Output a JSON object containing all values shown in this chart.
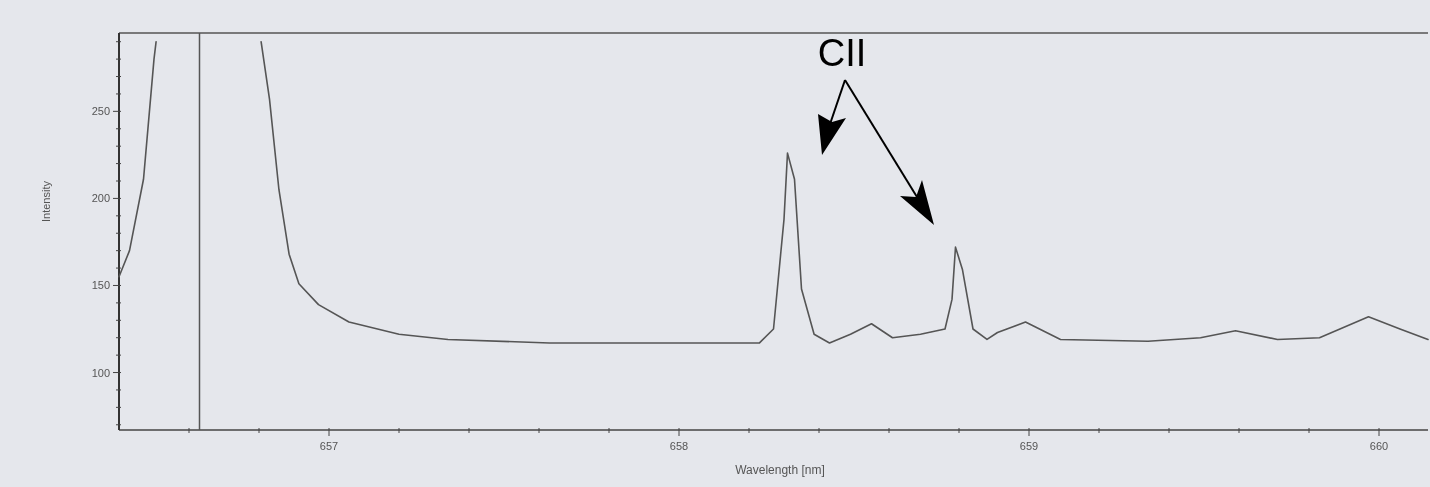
{
  "chart_data": {
    "type": "line",
    "xlabel": "Wavelength [nm]",
    "ylabel": "Intensity",
    "xlim": [
      656.4,
      660.14
    ],
    "ylim": [
      67,
      295
    ],
    "xticks": [
      {
        "value": 656.6,
        "label": null
      },
      {
        "value": 656.8,
        "label": null
      },
      657,
      {
        "value": 657.2,
        "label": null
      },
      {
        "value": 657.4,
        "label": null
      },
      {
        "value": 657.6,
        "label": null
      },
      {
        "value": 657.8,
        "label": null
      },
      658,
      {
        "value": 658.2,
        "label": null
      },
      {
        "value": 658.4,
        "label": null
      },
      {
        "value": 658.6,
        "label": null
      },
      {
        "value": 658.8,
        "label": null
      },
      659,
      {
        "value": 659.2,
        "label": null
      },
      {
        "value": 659.4,
        "label": null
      },
      {
        "value": 659.6,
        "label": null
      },
      {
        "value": 659.8,
        "label": null
      },
      660
    ],
    "yticks": [
      {
        "value": 70,
        "label": null
      },
      {
        "value": 80,
        "label": null
      },
      {
        "value": 90,
        "label": null
      },
      100,
      {
        "value": 110,
        "label": null
      },
      {
        "value": 120,
        "label": null
      },
      {
        "value": 130,
        "label": null
      },
      {
        "value": 140,
        "label": null
      },
      150,
      {
        "value": 160,
        "label": null
      },
      {
        "value": 170,
        "label": null
      },
      {
        "value": 180,
        "label": null
      },
      {
        "value": 190,
        "label": null
      },
      200,
      {
        "value": 210,
        "label": null
      },
      {
        "value": 220,
        "label": null
      },
      {
        "value": 230,
        "label": null
      },
      {
        "value": 240,
        "label": null
      },
      250,
      {
        "value": 260,
        "label": null
      },
      {
        "value": 270,
        "label": null
      },
      {
        "value": 280,
        "label": null
      },
      {
        "value": 290,
        "label": null
      }
    ],
    "grid": false,
    "marker": "none",
    "line_style": "solid",
    "ref_lines": [
      {
        "axis": "x",
        "value": 656.63,
        "color": "#555555"
      }
    ],
    "annotations": [
      "CII"
    ],
    "series": [
      {
        "color": "#555555",
        "x": [
          656.4,
          656.43,
          656.47,
          656.5,
          656.506,
          656.66,
          656.806,
          656.83,
          656.857,
          656.886,
          656.914,
          656.97,
          657.057,
          657.2,
          657.34,
          657.63,
          658.06,
          658.23,
          658.27,
          658.3,
          658.31,
          658.33,
          658.35,
          658.386,
          658.43,
          658.49,
          658.55,
          658.61,
          658.69,
          658.76,
          658.78,
          658.79,
          658.81,
          658.84,
          658.88,
          658.91,
          658.99,
          659.09,
          659.34,
          659.49,
          659.59,
          659.71,
          659.83,
          659.97,
          660.06,
          660.14
        ],
        "values": [
          155,
          170,
          211,
          280,
          290,
          null,
          290,
          257,
          205,
          168,
          151,
          139,
          129,
          122,
          119,
          117,
          117,
          117,
          125,
          188,
          226,
          211,
          148,
          122,
          117,
          122,
          128,
          120,
          122,
          125,
          142,
          172,
          159,
          125,
          119,
          123,
          129,
          119,
          118,
          120,
          124,
          119,
          120,
          132,
          125,
          119
        ]
      }
    ]
  }
}
